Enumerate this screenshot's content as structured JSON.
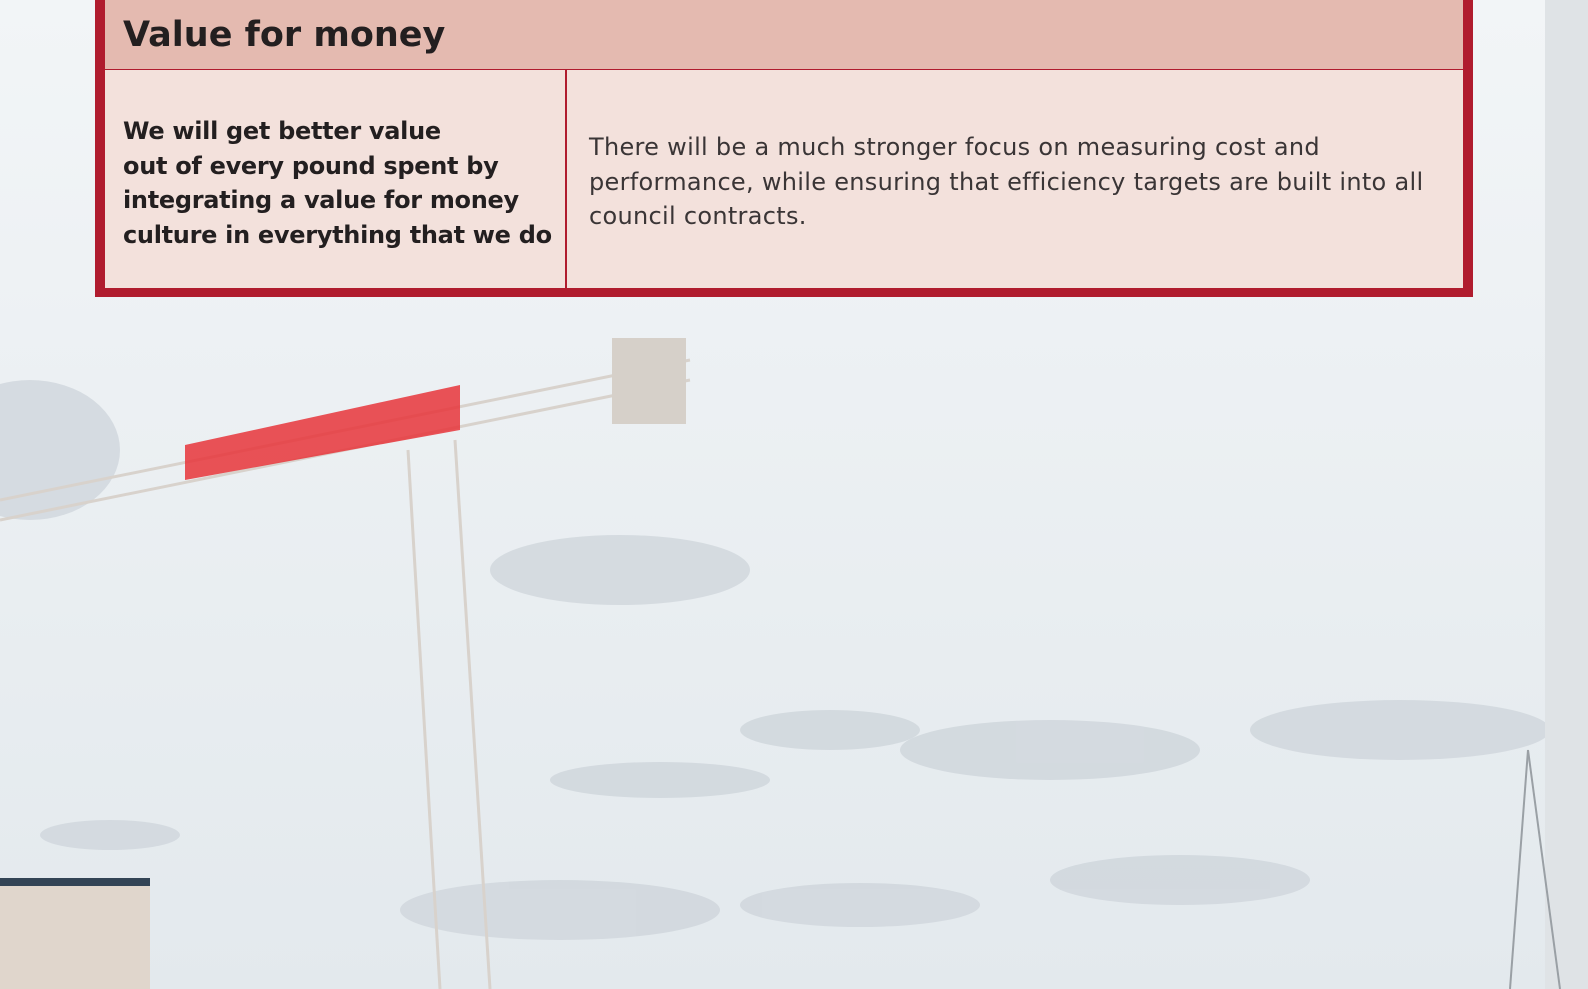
{
  "table": {
    "title": "Value for money",
    "rows": [
      [
        "We will get better value\nout of every pound spent by\nintegrating a value for money\nculture in everything that we do",
        "There will be a much stronger focus on measuring cost and performance, while ensuring that efficiency targets are built into all council contracts."
      ]
    ]
  }
}
